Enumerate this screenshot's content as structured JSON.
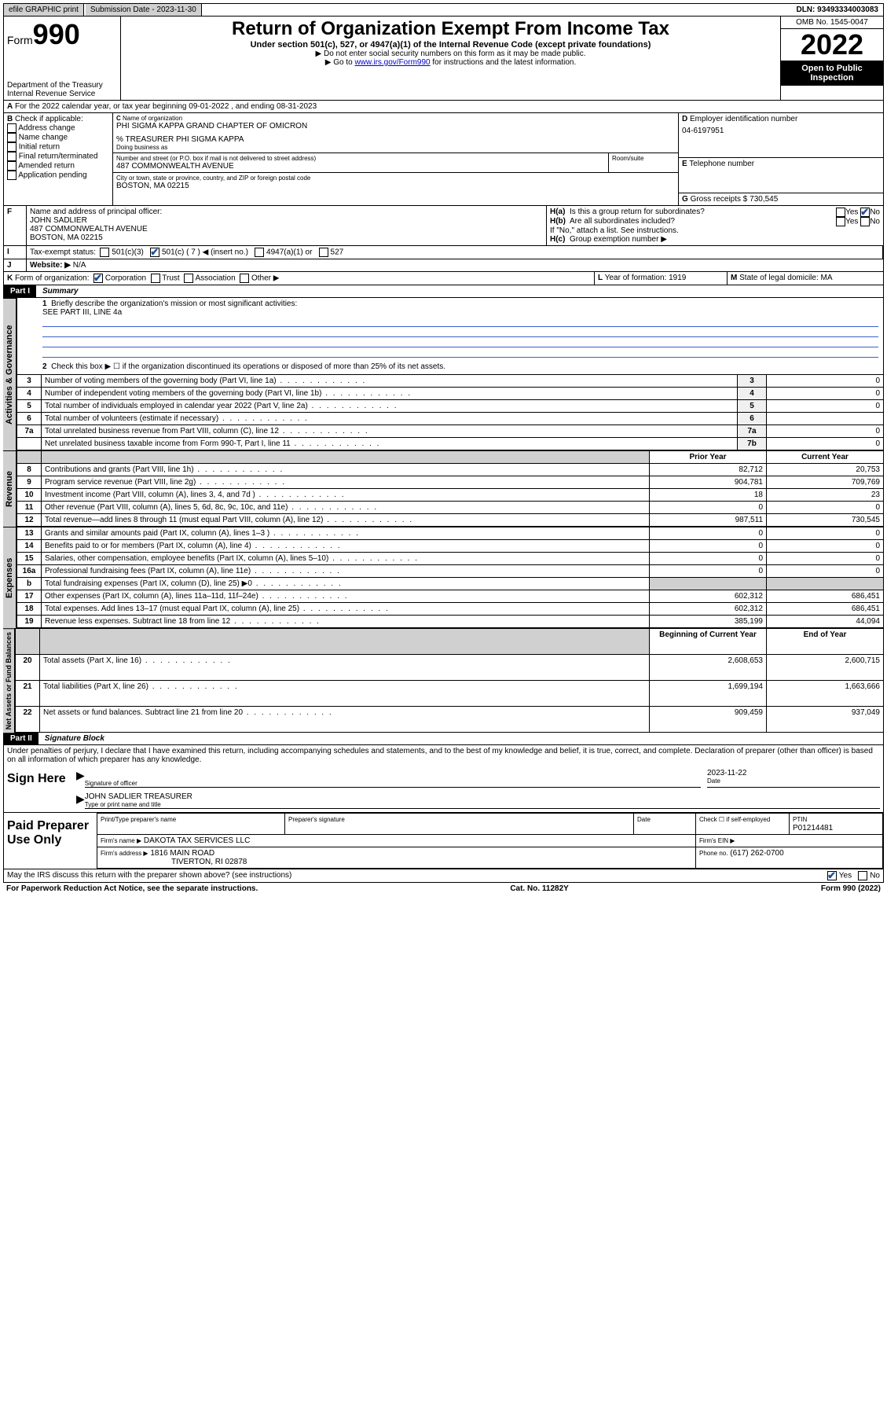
{
  "topbar": {
    "efile": "efile GRAPHIC print",
    "sublabel": "Submission Date - 2023-11-30",
    "dln": "DLN: 93493334003083"
  },
  "header": {
    "form_prefix": "Form",
    "form_no": "990",
    "dept": "Department of the Treasury",
    "irs": "Internal Revenue Service",
    "title": "Return of Organization Exempt From Income Tax",
    "sub": "Under section 501(c), 527, or 4947(a)(1) of the Internal Revenue Code (except private foundations)",
    "note1": "▶ Do not enter social security numbers on this form as it may be made public.",
    "note2_pre": "▶ Go to ",
    "note2_link": "www.irs.gov/Form990",
    "note2_post": " for instructions and the latest information.",
    "omb": "OMB No. 1545-0047",
    "year": "2022",
    "inspect": "Open to Public Inspection"
  },
  "periodA": "For the 2022 calendar year, or tax year beginning 09-01-2022    , and ending 08-31-2023",
  "boxB": {
    "label": "Check if applicable:",
    "opt1": "Address change",
    "opt2": "Name change",
    "opt3": "Initial return",
    "opt4": "Final return/terminated",
    "opt5": "Amended return",
    "opt6": "Application pending"
  },
  "boxC": {
    "label": "Name of organization",
    "name": "PHI SIGMA KAPPA GRAND CHAPTER OF OMICRON",
    "care": "% TREASURER PHI SIGMA KAPPA",
    "dba_label": "Doing business as",
    "addr_label": "Number and street (or P.O. box if mail is not delivered to street address)",
    "room_label": "Room/suite",
    "addr": "487 COMMONWEALTH AVENUE",
    "city_label": "City or town, state or province, country, and ZIP or foreign postal code",
    "city": "BOSTON, MA  02215"
  },
  "boxD": {
    "label": "Employer identification number",
    "val": "04-6197951"
  },
  "boxE": {
    "label": "Telephone number"
  },
  "boxG": {
    "label": "Gross receipts $",
    "val": "730,545"
  },
  "boxF": {
    "label": "Name and address of principal officer:",
    "name": "JOHN SADLIER",
    "addr": "487 COMMONWEALTH AVENUE",
    "city": "BOSTON, MA  02215"
  },
  "boxH": {
    "a": "Is this a group return for subordinates?",
    "b": "Are all subordinates included?",
    "note": "If \"No,\" attach a list. See instructions.",
    "c": "Group exemption number ▶"
  },
  "boxI": {
    "label": "Tax-exempt status:",
    "o1": "501(c)(3)",
    "o2": "501(c) ( 7 ) ◀ (insert no.)",
    "o3": "4947(a)(1) or",
    "o4": "527"
  },
  "boxJ": {
    "label": "Website: ▶",
    "val": "N/A"
  },
  "boxK": {
    "label": "Form of organization:",
    "o1": "Corporation",
    "o2": "Trust",
    "o3": "Association",
    "o4": "Other ▶"
  },
  "boxL": {
    "label": "Year of formation:",
    "val": "1919"
  },
  "boxM": {
    "label": "State of legal domicile:",
    "val": "MA"
  },
  "part1": {
    "hdr": "Part I",
    "title": "Summary",
    "l1": "Briefly describe the organization's mission or most significant activities:",
    "l1v": "SEE PART III, LINE 4a",
    "l2": "Check this box ▶ ☐  if the organization discontinued its operations or disposed of more than 25% of its net assets.",
    "rows_gov": [
      {
        "n": "3",
        "t": "Number of voting members of the governing body (Part VI, line 1a)",
        "r": "3",
        "v": "0"
      },
      {
        "n": "4",
        "t": "Number of independent voting members of the governing body (Part VI, line 1b)",
        "r": "4",
        "v": "0"
      },
      {
        "n": "5",
        "t": "Total number of individuals employed in calendar year 2022 (Part V, line 2a)",
        "r": "5",
        "v": "0"
      },
      {
        "n": "6",
        "t": "Total number of volunteers (estimate if necessary)",
        "r": "6",
        "v": ""
      },
      {
        "n": "7a",
        "t": "Total unrelated business revenue from Part VIII, column (C), line 12",
        "r": "7a",
        "v": "0"
      },
      {
        "n": "",
        "t": "Net unrelated business taxable income from Form 990-T, Part I, line 11",
        "r": "7b",
        "v": "0"
      }
    ],
    "col_prior": "Prior Year",
    "col_curr": "Current Year",
    "rows_rev": [
      {
        "n": "8",
        "t": "Contributions and grants (Part VIII, line 1h)",
        "p": "82,712",
        "c": "20,753"
      },
      {
        "n": "9",
        "t": "Program service revenue (Part VIII, line 2g)",
        "p": "904,781",
        "c": "709,769"
      },
      {
        "n": "10",
        "t": "Investment income (Part VIII, column (A), lines 3, 4, and 7d )",
        "p": "18",
        "c": "23"
      },
      {
        "n": "11",
        "t": "Other revenue (Part VIII, column (A), lines 5, 6d, 8c, 9c, 10c, and 11e)",
        "p": "0",
        "c": "0"
      },
      {
        "n": "12",
        "t": "Total revenue—add lines 8 through 11 (must equal Part VIII, column (A), line 12)",
        "p": "987,511",
        "c": "730,545"
      }
    ],
    "rows_exp": [
      {
        "n": "13",
        "t": "Grants and similar amounts paid (Part IX, column (A), lines 1–3 )",
        "p": "0",
        "c": "0"
      },
      {
        "n": "14",
        "t": "Benefits paid to or for members (Part IX, column (A), line 4)",
        "p": "0",
        "c": "0"
      },
      {
        "n": "15",
        "t": "Salaries, other compensation, employee benefits (Part IX, column (A), lines 5–10)",
        "p": "0",
        "c": "0"
      },
      {
        "n": "16a",
        "t": "Professional fundraising fees (Part IX, column (A), line 11e)",
        "p": "0",
        "c": "0"
      },
      {
        "n": "b",
        "t": "Total fundraising expenses (Part IX, column (D), line 25) ▶0",
        "p": "",
        "c": "",
        "shade": true
      },
      {
        "n": "17",
        "t": "Other expenses (Part IX, column (A), lines 11a–11d, 11f–24e)",
        "p": "602,312",
        "c": "686,451"
      },
      {
        "n": "18",
        "t": "Total expenses. Add lines 13–17 (must equal Part IX, column (A), line 25)",
        "p": "602,312",
        "c": "686,451"
      },
      {
        "n": "19",
        "t": "Revenue less expenses. Subtract line 18 from line 12",
        "p": "385,199",
        "c": "44,094"
      }
    ],
    "col_begin": "Beginning of Current Year",
    "col_end": "End of Year",
    "rows_net": [
      {
        "n": "20",
        "t": "Total assets (Part X, line 16)",
        "p": "2,608,653",
        "c": "2,600,715"
      },
      {
        "n": "21",
        "t": "Total liabilities (Part X, line 26)",
        "p": "1,699,194",
        "c": "1,663,666"
      },
      {
        "n": "22",
        "t": "Net assets or fund balances. Subtract line 21 from line 20",
        "p": "909,459",
        "c": "937,049"
      }
    ]
  },
  "vtabs": {
    "gov": "Activities & Governance",
    "rev": "Revenue",
    "exp": "Expenses",
    "net": "Net Assets or Fund Balances"
  },
  "part2": {
    "hdr": "Part II",
    "title": "Signature Block",
    "decl": "Under penalties of perjury, I declare that I have examined this return, including accompanying schedules and statements, and to the best of my knowledge and belief, it is true, correct, and complete. Declaration of preparer (other than officer) is based on all information of which preparer has any knowledge.",
    "sign_here": "Sign Here",
    "sig_officer": "Signature of officer",
    "sig_date_label": "Date",
    "sig_date": "2023-11-22",
    "officer_name": "JOHN SADLIER  TREASURER",
    "officer_hint": "Type or print name and title",
    "paid": "Paid Preparer Use Only",
    "prep_name_label": "Print/Type preparer's name",
    "prep_sig_label": "Preparer's signature",
    "date_label": "Date",
    "check_label": "Check ☐ if self-employed",
    "ptin_label": "PTIN",
    "ptin": "P01214481",
    "firm_name_label": "Firm's name    ▶",
    "firm_name": "DAKOTA TAX SERVICES LLC",
    "firm_ein_label": "Firm's EIN ▶",
    "firm_addr_label": "Firm's address ▶",
    "firm_addr1": "1816 MAIN ROAD",
    "firm_addr2": "TIVERTON, RI  02878",
    "phone_label": "Phone no.",
    "phone": "(617) 262-0700",
    "discuss": "May the IRS discuss this return with the preparer shown above? (see instructions)"
  },
  "footer": {
    "pra": "For Paperwork Reduction Act Notice, see the separate instructions.",
    "cat": "Cat. No. 11282Y",
    "formref": "Form 990 (2022)"
  },
  "yn": {
    "yes": "Yes",
    "no": "No"
  }
}
